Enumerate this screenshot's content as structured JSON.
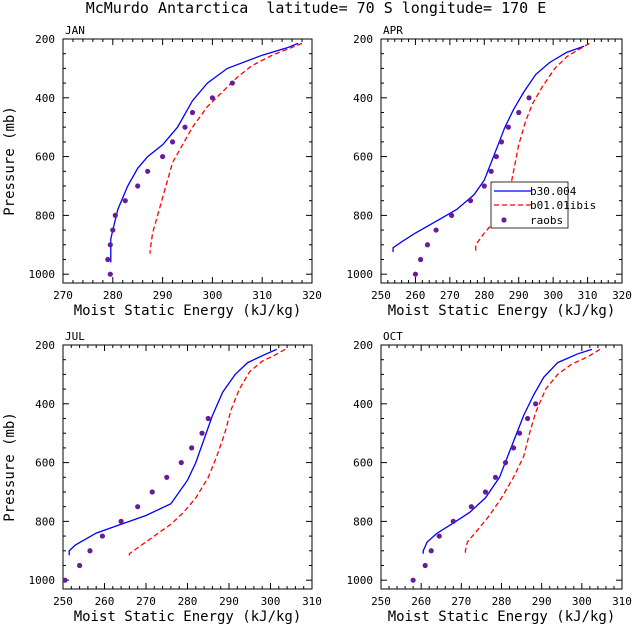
{
  "title": "McMurdo Antarctica  latitude= 70 S longitude= 170 E",
  "colors": {
    "b30": "#0000ff",
    "b01": "#ff0000",
    "raobs": "#6a1b9a"
  },
  "legend": {
    "entries": [
      {
        "key": "b30",
        "label": "b30.004",
        "style": "solid"
      },
      {
        "key": "b01",
        "label": "b01.01ibis",
        "style": "dashed"
      },
      {
        "key": "raobs",
        "label": "raobs",
        "style": "marker"
      }
    ]
  },
  "chart_data": [
    {
      "type": "line",
      "panel": "JAN",
      "xlabel": "Moist Static Energy (kJ/kg)",
      "ylabel": "Pressure (mb)",
      "xlim": [
        270,
        320
      ],
      "ylim": [
        200,
        1030
      ],
      "y_inverted": true,
      "xticks": [
        270,
        280,
        290,
        300,
        310,
        320
      ],
      "yticks": [
        200,
        400,
        600,
        800,
        1000
      ],
      "series": [
        {
          "key": "b30",
          "points": [
            [
              317.2,
              215
            ],
            [
              315,
              230
            ],
            [
              310,
              255
            ],
            [
              303,
              300
            ],
            [
              299,
              350
            ],
            [
              296,
              410
            ],
            [
              293,
              500
            ],
            [
              290,
              560
            ],
            [
              287,
              600
            ],
            [
              285,
              640
            ],
            [
              283,
              700
            ],
            [
              281,
              780
            ],
            [
              280,
              850
            ],
            [
              279.6,
              880
            ],
            [
              279.6,
              960
            ]
          ]
        },
        {
          "key": "b01",
          "points": [
            [
              318,
              215
            ],
            [
              315,
              235
            ],
            [
              312,
              255
            ],
            [
              308,
              290
            ],
            [
              305,
              330
            ],
            [
              302,
              380
            ],
            [
              299,
              430
            ],
            [
              296,
              500
            ],
            [
              294,
              560
            ],
            [
              292,
              620
            ],
            [
              291,
              680
            ],
            [
              290,
              740
            ],
            [
              289,
              800
            ],
            [
              288,
              860
            ],
            [
              287.5,
              920
            ],
            [
              287.5,
              930
            ]
          ]
        },
        {
          "key": "raobs",
          "points": [
            [
              304,
              350
            ],
            [
              300,
              400
            ],
            [
              296,
              450
            ],
            [
              294.5,
              500
            ],
            [
              292,
              550
            ],
            [
              290,
              600
            ],
            [
              287,
              650
            ],
            [
              285,
              700
            ],
            [
              282.5,
              750
            ],
            [
              280.5,
              800
            ],
            [
              280,
              850
            ],
            [
              279.5,
              900
            ],
            [
              279,
              950
            ],
            [
              279.5,
              1000
            ]
          ]
        }
      ]
    },
    {
      "type": "line",
      "panel": "APR",
      "xlabel": "Moist Static Energy (kJ/kg)",
      "ylabel": "",
      "xlim": [
        250,
        320
      ],
      "ylim": [
        200,
        1030
      ],
      "y_inverted": true,
      "xticks": [
        250,
        260,
        270,
        280,
        290,
        300,
        310,
        320
      ],
      "yticks": [
        200,
        400,
        600,
        800,
        1000
      ],
      "series": [
        {
          "key": "b30",
          "points": [
            [
              309,
              225
            ],
            [
              304,
              245
            ],
            [
              299,
              280
            ],
            [
              295,
              320
            ],
            [
              291.5,
              380
            ],
            [
              288.5,
              440
            ],
            [
              286,
              500
            ],
            [
              284,
              560
            ],
            [
              282,
              620
            ],
            [
              280,
              680
            ],
            [
              277,
              730
            ],
            [
              272,
              780
            ],
            [
              266,
              820
            ],
            [
              260,
              860
            ],
            [
              256,
              890
            ],
            [
              253.5,
              910
            ],
            [
              253.5,
              925
            ]
          ]
        },
        {
          "key": "b01",
          "points": [
            [
              310.5,
              215
            ],
            [
              307.5,
              235
            ],
            [
              304,
              260
            ],
            [
              300.5,
              300
            ],
            [
              297,
              360
            ],
            [
              294,
              420
            ],
            [
              292,
              480
            ],
            [
              290,
              560
            ],
            [
              289,
              620
            ],
            [
              288,
              680
            ],
            [
              287,
              730
            ],
            [
              285,
              780
            ],
            [
              283,
              820
            ],
            [
              280,
              860
            ],
            [
              277.5,
              900
            ],
            [
              277.5,
              920
            ]
          ]
        },
        {
          "key": "raobs",
          "points": [
            [
              293,
              400
            ],
            [
              290,
              450
            ],
            [
              287,
              500
            ],
            [
              285,
              550
            ],
            [
              283.5,
              600
            ],
            [
              282,
              650
            ],
            [
              280,
              700
            ],
            [
              276,
              750
            ],
            [
              270.5,
              800
            ],
            [
              266,
              850
            ],
            [
              263.5,
              900
            ],
            [
              261.5,
              950
            ],
            [
              260,
              1000
            ]
          ]
        }
      ]
    },
    {
      "type": "line",
      "panel": "JUL",
      "xlabel": "Moist Static Energy (kJ/kg)",
      "ylabel": "Pressure (mb)",
      "xlim": [
        250,
        310
      ],
      "ylim": [
        200,
        1030
      ],
      "y_inverted": true,
      "xticks": [
        250,
        260,
        270,
        280,
        290,
        300,
        310
      ],
      "yticks": [
        200,
        400,
        600,
        800,
        1000
      ],
      "series": [
        {
          "key": "b30",
          "points": [
            [
              301.5,
              215
            ],
            [
              299,
              230
            ],
            [
              294.5,
              260
            ],
            [
              291.5,
              300
            ],
            [
              288.5,
              360
            ],
            [
              286,
              440
            ],
            [
              284,
              520
            ],
            [
              282,
              600
            ],
            [
              280,
              660
            ],
            [
              278,
              700
            ],
            [
              276,
              740
            ],
            [
              270,
              780
            ],
            [
              264,
              810
            ],
            [
              258,
              840
            ],
            [
              253,
              880
            ],
            [
              251.5,
              900
            ],
            [
              251.5,
              915
            ]
          ]
        },
        {
          "key": "b01",
          "points": [
            [
              303.5,
              215
            ],
            [
              301,
              235
            ],
            [
              298,
              255
            ],
            [
              295,
              290
            ],
            [
              292.5,
              350
            ],
            [
              290.5,
              420
            ],
            [
              289,
              500
            ],
            [
              287,
              580
            ],
            [
              285,
              650
            ],
            [
              282,
              720
            ],
            [
              279,
              770
            ],
            [
              276,
              810
            ],
            [
              273,
              840
            ],
            [
              269,
              880
            ],
            [
              266,
              910
            ],
            [
              266,
              920
            ]
          ]
        },
        {
          "key": "raobs",
          "points": [
            [
              285,
              450
            ],
            [
              283.5,
              500
            ],
            [
              281,
              550
            ],
            [
              278.5,
              600
            ],
            [
              275,
              650
            ],
            [
              271.5,
              700
            ],
            [
              268,
              750
            ],
            [
              264,
              800
            ],
            [
              259.5,
              850
            ],
            [
              256.5,
              900
            ],
            [
              254,
              950
            ],
            [
              250.5,
              1000
            ]
          ]
        }
      ]
    },
    {
      "type": "line",
      "panel": "OCT",
      "xlabel": "Moist Static Energy (kJ/kg)",
      "ylabel": "",
      "xlim": [
        250,
        310
      ],
      "ylim": [
        200,
        1030
      ],
      "y_inverted": true,
      "xticks": [
        250,
        260,
        270,
        280,
        290,
        300,
        310
      ],
      "yticks": [
        200,
        400,
        600,
        800,
        1000
      ],
      "series": [
        {
          "key": "b30",
          "points": [
            [
              302.5,
              215
            ],
            [
              299,
              230
            ],
            [
              294,
              260
            ],
            [
              290.5,
              310
            ],
            [
              288,
              370
            ],
            [
              285.5,
              440
            ],
            [
              283.5,
              510
            ],
            [
              281.5,
              580
            ],
            [
              279.5,
              650
            ],
            [
              276,
              720
            ],
            [
              272,
              770
            ],
            [
              267.5,
              810
            ],
            [
              264,
              840
            ],
            [
              261.5,
              870
            ],
            [
              260.5,
              900
            ],
            [
              260.5,
              910
            ]
          ]
        },
        {
          "key": "b01",
          "points": [
            [
              304.5,
              215
            ],
            [
              301.5,
              240
            ],
            [
              297.5,
              265
            ],
            [
              294,
              300
            ],
            [
              291,
              350
            ],
            [
              288.5,
              430
            ],
            [
              287,
              500
            ],
            [
              285.5,
              580
            ],
            [
              283,
              650
            ],
            [
              280,
              720
            ],
            [
              277,
              780
            ],
            [
              274,
              830
            ],
            [
              271.5,
              870
            ],
            [
              271,
              900
            ],
            [
              271,
              915
            ]
          ]
        },
        {
          "key": "raobs",
          "points": [
            [
              288.5,
              400
            ],
            [
              286.5,
              450
            ],
            [
              284.5,
              500
            ],
            [
              283,
              550
            ],
            [
              281,
              600
            ],
            [
              278.5,
              650
            ],
            [
              276,
              700
            ],
            [
              272.5,
              750
            ],
            [
              268,
              800
            ],
            [
              264.5,
              850
            ],
            [
              262.5,
              900
            ],
            [
              261,
              950
            ],
            [
              258,
              1000
            ]
          ]
        }
      ]
    }
  ]
}
